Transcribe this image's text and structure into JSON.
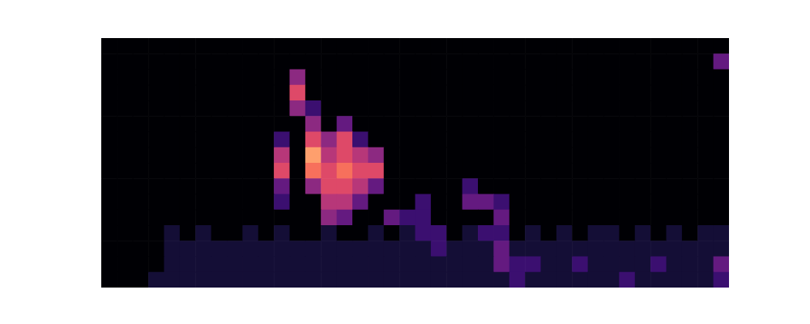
{
  "chart_data": {
    "type": "heatmap",
    "color": "magma",
    "tick_labels": false,
    "zlim": [
      0,
      10
    ],
    "cells": [
      [
        0,
        0,
        0,
        0,
        0,
        0,
        0,
        0,
        0,
        0,
        0,
        0,
        0,
        0,
        0,
        0,
        0,
        0,
        0,
        0,
        0,
        0,
        0,
        0,
        0,
        0,
        0,
        0,
        0,
        0,
        0,
        0,
        0,
        0,
        0,
        0,
        0,
        0,
        0,
        0
      ],
      [
        0,
        0,
        0,
        0,
        0,
        0,
        0,
        0,
        0,
        0,
        0,
        0,
        0,
        0,
        0,
        0,
        0,
        0,
        0,
        0,
        0,
        0,
        0,
        0,
        0,
        0,
        0,
        0,
        0,
        0,
        0,
        0,
        0,
        0,
        0,
        0,
        0,
        0,
        0,
        3
      ],
      [
        0,
        0,
        0,
        0,
        0,
        0,
        0,
        0,
        0,
        0,
        0,
        0,
        4,
        0,
        0,
        0,
        0,
        0,
        0,
        0,
        0,
        0,
        0,
        0,
        0,
        0,
        0,
        0,
        0,
        0,
        0,
        0,
        0,
        0,
        0,
        0,
        0,
        0,
        0,
        0
      ],
      [
        0,
        0,
        0,
        0,
        0,
        0,
        0,
        0,
        0,
        0,
        0,
        0,
        6,
        0,
        0,
        0,
        0,
        0,
        0,
        0,
        0,
        0,
        0,
        0,
        0,
        0,
        0,
        0,
        0,
        0,
        0,
        0,
        0,
        0,
        0,
        0,
        0,
        0,
        0,
        0
      ],
      [
        0,
        0,
        0,
        0,
        0,
        0,
        0,
        0,
        0,
        0,
        0,
        0,
        4,
        2,
        0,
        0,
        0,
        0,
        0,
        0,
        0,
        0,
        0,
        0,
        0,
        0,
        0,
        0,
        0,
        0,
        0,
        0,
        0,
        0,
        0,
        0,
        0,
        0,
        0,
        0
      ],
      [
        0,
        0,
        0,
        0,
        0,
        0,
        0,
        0,
        0,
        0,
        0,
        0,
        0,
        4,
        0,
        3,
        0,
        0,
        0,
        0,
        0,
        0,
        0,
        0,
        0,
        0,
        0,
        0,
        0,
        0,
        0,
        0,
        0,
        0,
        0,
        0,
        0,
        0,
        0,
        0
      ],
      [
        0,
        0,
        0,
        0,
        0,
        0,
        0,
        0,
        0,
        0,
        0,
        2,
        0,
        6,
        4,
        6,
        2,
        0,
        0,
        0,
        0,
        0,
        0,
        0,
        0,
        0,
        0,
        0,
        0,
        0,
        0,
        0,
        0,
        0,
        0,
        0,
        0,
        0,
        0,
        0
      ],
      [
        0,
        0,
        0,
        0,
        0,
        0,
        0,
        0,
        0,
        0,
        0,
        5,
        0,
        8,
        5,
        6,
        5,
        4,
        0,
        0,
        0,
        0,
        0,
        0,
        0,
        0,
        0,
        0,
        0,
        0,
        0,
        0,
        0,
        0,
        0,
        0,
        0,
        0,
        0,
        0
      ],
      [
        0,
        0,
        0,
        0,
        0,
        0,
        0,
        0,
        0,
        0,
        0,
        6,
        0,
        7,
        6,
        7,
        6,
        6,
        0,
        0,
        0,
        0,
        0,
        0,
        0,
        0,
        0,
        0,
        0,
        0,
        0,
        0,
        0,
        0,
        0,
        0,
        0,
        0,
        0,
        0
      ],
      [
        0,
        0,
        0,
        0,
        0,
        0,
        0,
        0,
        0,
        0,
        0,
        3,
        0,
        4,
        6,
        6,
        5,
        3,
        0,
        0,
        0,
        0,
        0,
        2,
        0,
        0,
        0,
        0,
        0,
        0,
        0,
        0,
        0,
        0,
        0,
        0,
        0,
        0,
        0,
        0
      ],
      [
        0,
        0,
        0,
        0,
        0,
        0,
        0,
        0,
        0,
        0,
        0,
        2,
        0,
        0,
        5,
        5,
        3,
        0,
        0,
        0,
        2,
        0,
        0,
        3,
        3,
        2,
        0,
        0,
        0,
        0,
        0,
        0,
        0,
        0,
        0,
        0,
        0,
        0,
        0,
        0
      ],
      [
        0,
        0,
        0,
        0,
        0,
        0,
        0,
        0,
        0,
        0,
        0,
        0,
        0,
        0,
        4,
        3,
        0,
        0,
        3,
        2,
        2,
        0,
        0,
        0,
        0,
        3,
        0,
        0,
        0,
        0,
        0,
        0,
        0,
        0,
        0,
        0,
        0,
        0,
        0,
        0
      ],
      [
        0,
        0,
        0,
        0,
        1,
        0,
        1,
        0,
        0,
        1,
        0,
        1,
        0,
        0,
        1,
        0,
        0,
        1,
        0,
        1,
        2,
        2,
        0,
        1,
        2,
        2,
        0,
        1,
        0,
        1,
        0,
        1,
        1,
        0,
        1,
        0,
        1,
        0,
        1,
        1
      ],
      [
        0,
        0,
        0,
        0,
        1,
        1,
        1,
        1,
        1,
        1,
        1,
        1,
        1,
        1,
        1,
        1,
        1,
        1,
        1,
        1,
        1,
        2,
        1,
        1,
        1,
        3,
        1,
        1,
        1,
        1,
        1,
        1,
        1,
        1,
        1,
        1,
        1,
        1,
        1,
        1
      ],
      [
        0,
        0,
        0,
        0,
        1,
        1,
        1,
        1,
        1,
        1,
        1,
        1,
        1,
        1,
        1,
        1,
        1,
        1,
        1,
        1,
        1,
        1,
        1,
        1,
        1,
        3,
        2,
        2,
        1,
        1,
        2,
        1,
        1,
        1,
        1,
        2,
        1,
        1,
        1,
        3
      ],
      [
        0,
        0,
        0,
        1,
        1,
        1,
        1,
        1,
        1,
        1,
        1,
        1,
        1,
        1,
        1,
        1,
        1,
        1,
        1,
        1,
        1,
        1,
        1,
        1,
        1,
        1,
        2,
        1,
        1,
        1,
        1,
        1,
        1,
        2,
        1,
        1,
        1,
        1,
        1,
        2
      ]
    ]
  }
}
